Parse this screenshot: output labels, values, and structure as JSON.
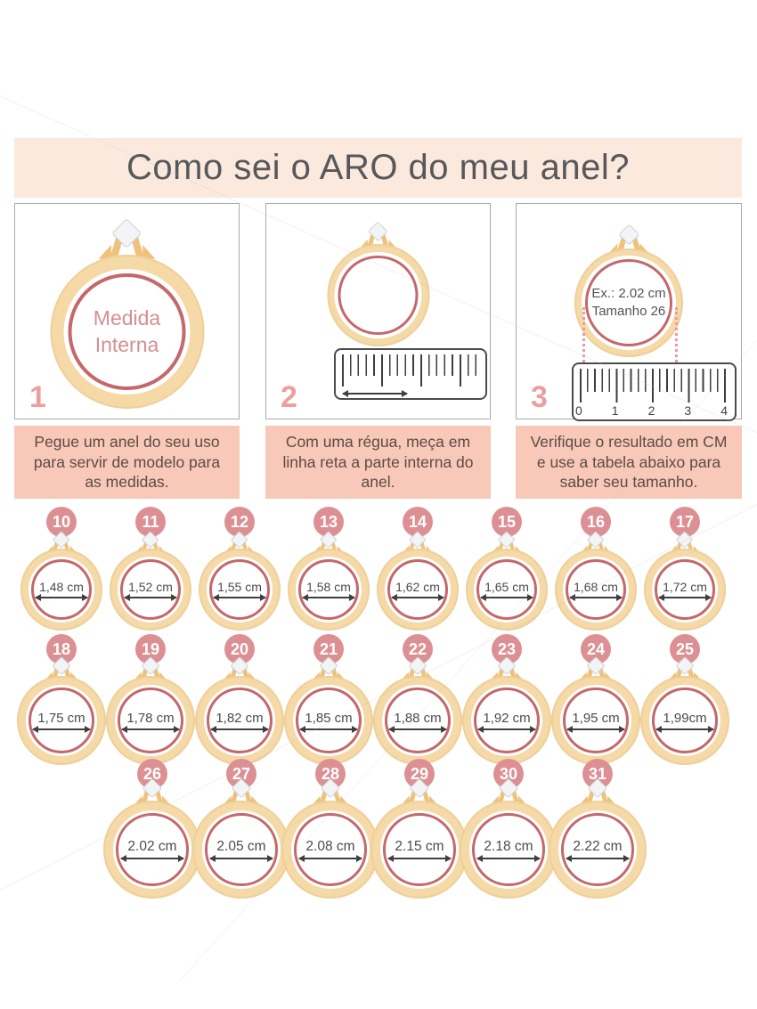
{
  "title": "Como sei o ARO do meu anel?",
  "colors": {
    "banner-bg": "#fce9de",
    "caption-bg": "#f8c9b8",
    "badge": "#dd9094",
    "rose": "#c4686c",
    "gold": "#f5d9a6",
    "gold-dark": "#eec27a",
    "title-text": "#57585b",
    "pink-text": "#d58e95",
    "number-pink": "#ec9fa0",
    "dot": "#ee9aa2"
  },
  "steps": [
    {
      "number": "1",
      "ring_label_lines": [
        "Medida",
        "Interna"
      ],
      "caption": "Pegue um anel do seu uso para servir de modelo para as medidas."
    },
    {
      "number": "2",
      "caption": "Com uma régua, meça em linha reta a parte interna do anel."
    },
    {
      "number": "3",
      "ring_example_lines": [
        "Ex.: 2.02 cm",
        "Tamanho 26"
      ],
      "ruler_numbers": [
        "0",
        "1",
        "2",
        "3",
        "4"
      ],
      "caption": "Verifique o resultado em CM e use a tabela abaixo para saber seu tamanho."
    }
  ],
  "size_table": {
    "rows": [
      {
        "items": [
          {
            "size": "10",
            "measure": "1,48 cm"
          },
          {
            "size": "11",
            "measure": "1,52 cm"
          },
          {
            "size": "12",
            "measure": "1,55 cm"
          },
          {
            "size": "13",
            "measure": "1,58 cm"
          },
          {
            "size": "14",
            "measure": "1,62 cm"
          },
          {
            "size": "15",
            "measure": "1,65 cm"
          },
          {
            "size": "16",
            "measure": "1,68 cm"
          },
          {
            "size": "17",
            "measure": "1,72 cm"
          }
        ]
      },
      {
        "items": [
          {
            "size": "18",
            "measure": "1,75 cm"
          },
          {
            "size": "19",
            "measure": "1,78 cm"
          },
          {
            "size": "20",
            "measure": "1,82 cm"
          },
          {
            "size": "21",
            "measure": "1,85 cm"
          },
          {
            "size": "22",
            "measure": "1,88 cm"
          },
          {
            "size": "23",
            "measure": "1,92 cm"
          },
          {
            "size": "24",
            "measure": "1,95 cm"
          },
          {
            "size": "25",
            "measure": "1,99cm"
          }
        ]
      },
      {
        "items": [
          {
            "size": "26",
            "measure": "2.02 cm"
          },
          {
            "size": "27",
            "measure": "2.05 cm"
          },
          {
            "size": "28",
            "measure": "2.08 cm"
          },
          {
            "size": "29",
            "measure": "2.15 cm"
          },
          {
            "size": "30",
            "measure": "2.18 cm"
          },
          {
            "size": "31",
            "measure": "2.22 cm"
          }
        ]
      }
    ]
  }
}
